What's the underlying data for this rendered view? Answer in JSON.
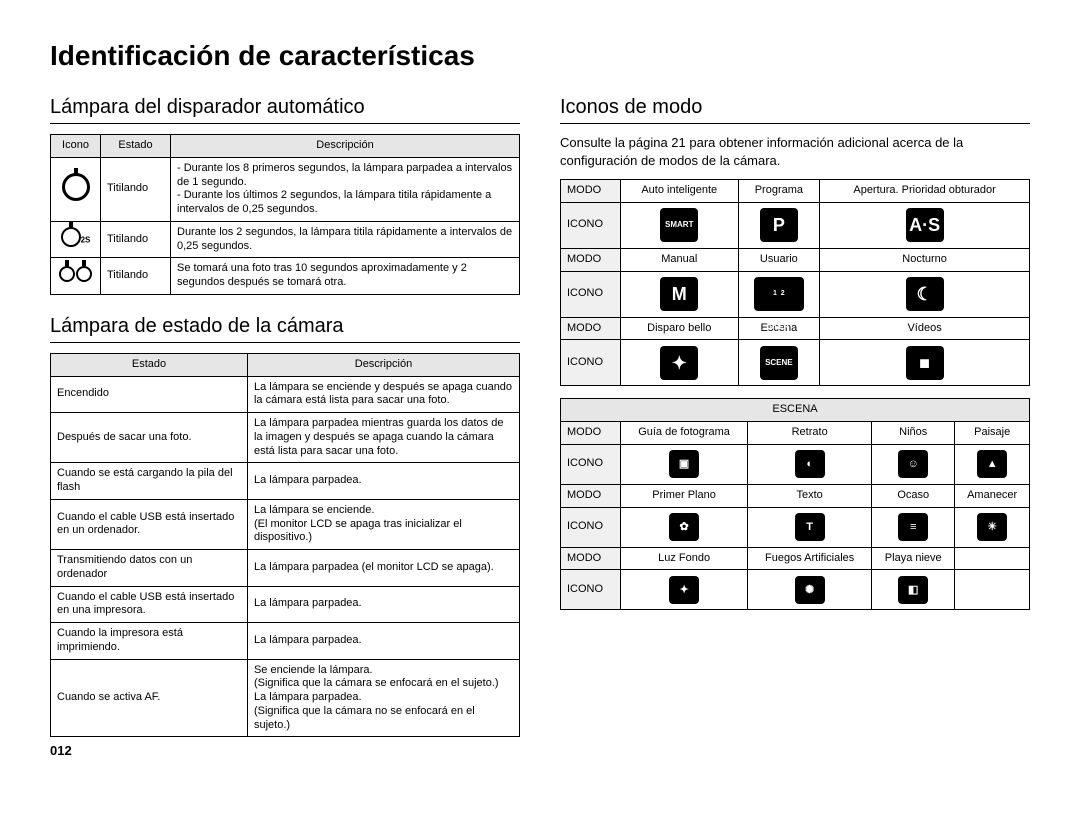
{
  "page_title": "Identificación de características",
  "page_number": "012",
  "left": {
    "section1_title": "Lámpara del disparador automático",
    "table1": {
      "cols": [
        "Icono",
        "Estado",
        "Descripción"
      ],
      "rows": [
        {
          "estado": "Titilando",
          "desc": "- Durante los 8 primeros segundos, la lámpara parpadea a intervalos de 1 segundo.\n- Durante los últimos 2 segundos, la lámpara titila rápidamente a intervalos de 0,25 segundos."
        },
        {
          "sup": "2S",
          "estado": "Titilando",
          "desc": "Durante los 2 segundos, la lámpara titila rápidamente a intervalos de 0,25 segundos."
        },
        {
          "estado": "Titilando",
          "desc": "Se tomará una foto tras 10 segundos aproximadamente y 2 segundos después se tomará otra."
        }
      ]
    },
    "section2_title": "Lámpara de estado de la cámara",
    "table2": {
      "cols": [
        "Estado",
        "Descripción"
      ],
      "rows": [
        {
          "estado": "Encendido",
          "desc": "La lámpara se enciende y después se apaga cuando la cámara está lista para sacar una foto."
        },
        {
          "estado": "Después de sacar una foto.",
          "desc": "La lámpara parpadea mientras guarda los datos de la imagen y después se apaga cuando la cámara está lista para sacar una foto."
        },
        {
          "estado": "Cuando se está cargando la pila del flash",
          "desc": "La lámpara parpadea."
        },
        {
          "estado": "Cuando el cable USB está insertado en un ordenador.",
          "desc": "La lámpara se enciende.\n(El monitor LCD se apaga tras inicializar el dispositivo.)"
        },
        {
          "estado": "Transmitiendo datos con un ordenador",
          "desc": "La lámpara parpadea (el monitor LCD se apaga)."
        },
        {
          "estado": "Cuando el cable USB está insertado en una impresora.",
          "desc": "La lámpara parpadea."
        },
        {
          "estado": "Cuando la impresora está imprimiendo.",
          "desc": "La lámpara parpadea."
        },
        {
          "estado": "Cuando se activa AF.",
          "desc": "Se enciende la lámpara.\n(Significa que la cámara se enfocará en el sujeto.)\nLa lámpara parpadea.\n(Significa que la cámara no se enfocará en el sujeto.)"
        }
      ]
    }
  },
  "right": {
    "section_title": "Iconos de modo",
    "intro": "Consulte la página 21 para obtener información adicional acerca de la configuración de modos de la cámara.",
    "labels": {
      "modo": "MODO",
      "icono": "ICONO",
      "escena": "ESCENA"
    },
    "block1": {
      "modo1": [
        "Auto inteligente",
        "Programa",
        "Apertura. Prioridad obturador"
      ],
      "modo2": [
        "Manual",
        "Usuario",
        "Nocturno"
      ],
      "modo3": [
        "Disparo bello",
        "Escena",
        "Vídeos"
      ],
      "icons1": [
        "SMART",
        "P",
        "A·S"
      ],
      "icons2": [
        "M",
        "USER",
        "☾"
      ],
      "icons3": [
        "✦",
        "SCENE",
        "■"
      ]
    },
    "block2": {
      "modo1": [
        "Guía de fotograma",
        "Retrato",
        "Niños",
        "Paisaje"
      ],
      "modo2": [
        "Primer Plano",
        "Texto",
        "Ocaso",
        "Amanecer"
      ],
      "modo3": [
        "Luz Fondo",
        "Fuegos Artificiales",
        "Playa nieve",
        ""
      ],
      "icons1": [
        "▣",
        "◐",
        "☺",
        "▲"
      ],
      "icons2": [
        "✿",
        "T",
        "≡",
        "☀"
      ],
      "icons3": [
        "✦",
        "✺",
        "◧",
        ""
      ]
    }
  }
}
